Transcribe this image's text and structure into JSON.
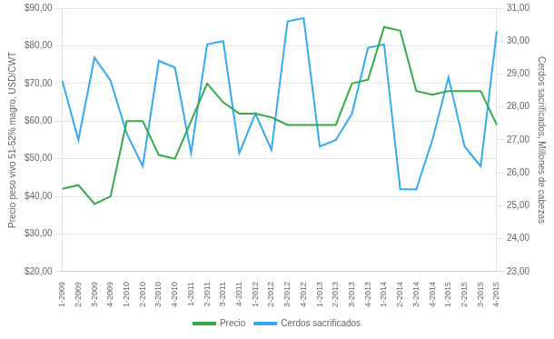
{
  "chart_data": {
    "type": "line",
    "categories": [
      "1-2009",
      "2-2009",
      "3-2009",
      "4-2009",
      "1-2010",
      "2-2010",
      "3-2010",
      "4-2010",
      "1-2011",
      "2-2011",
      "3-2011",
      "4-2011",
      "1-2012",
      "2-2012",
      "3-2012",
      "4-2012",
      "1-2013",
      "2-2013",
      "3-2013",
      "4-2013",
      "1-2014",
      "2-2014",
      "3-2014",
      "4-2014",
      "1-2015",
      "2-2015",
      "3-2015",
      "4-2015"
    ],
    "series": [
      {
        "name": "Precio",
        "color": "#33aa44",
        "values": [
          42,
          43,
          38,
          40,
          60,
          60,
          51,
          50,
          60,
          70,
          65,
          62,
          62,
          61,
          59,
          59,
          59,
          59,
          70,
          71,
          85,
          84,
          68,
          67,
          68,
          68,
          68,
          59
        ]
      },
      {
        "name": "Cerdos sacrificados",
        "color": "#33aaee",
        "axis": "y2",
        "values": [
          28.8,
          27.0,
          29.5,
          28.8,
          27.2,
          26.2,
          29.4,
          29.2,
          26.6,
          29.9,
          30.0,
          26.6,
          27.8,
          26.7,
          30.6,
          30.7,
          26.8,
          27.0,
          27.8,
          29.8,
          29.9,
          25.5,
          25.5,
          27.0,
          28.9,
          26.8,
          26.2,
          30.3
        ]
      }
    ],
    "ylabel": "Precio peso vivo 51-52% magro, USD/CWT",
    "y2label": "Cerdos sacrificados, Millones de cabezas",
    "ylim": [
      20,
      90
    ],
    "yticks": [
      {
        "value": 20,
        "label": "$20,00"
      },
      {
        "value": 30,
        "label": "$30,00"
      },
      {
        "value": 40,
        "label": "$40,00"
      },
      {
        "value": 50,
        "label": "$50,00"
      },
      {
        "value": 60,
        "label": "$60,00"
      },
      {
        "value": 70,
        "label": "$70,00"
      },
      {
        "value": 80,
        "label": "$80,00"
      },
      {
        "value": 90,
        "label": "$90,00"
      }
    ],
    "y2lim": [
      23,
      31
    ],
    "y2ticks": [
      {
        "value": 23,
        "label": "23,00"
      },
      {
        "value": 24,
        "label": "24,00"
      },
      {
        "value": 25,
        "label": "25,00"
      },
      {
        "value": 26,
        "label": "26,00"
      },
      {
        "value": 27,
        "label": "27,00"
      },
      {
        "value": 28,
        "label": "28,00"
      },
      {
        "value": 29,
        "label": "29,00"
      },
      {
        "value": 30,
        "label": "30,00"
      },
      {
        "value": 31,
        "label": "31,00"
      }
    ],
    "grid": true,
    "legend": "lower center"
  }
}
